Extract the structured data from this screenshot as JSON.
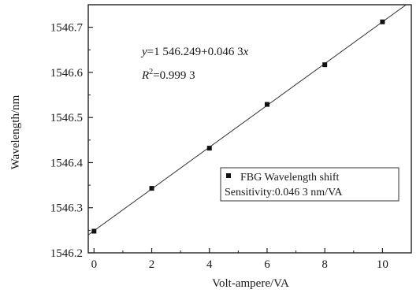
{
  "chart_data": {
    "type": "scatter",
    "title": "",
    "xlabel": "Volt-ampere/VA",
    "ylabel": "Wavelength/nm",
    "xlim": [
      -0.2,
      11
    ],
    "ylim": [
      1546.2,
      1546.75
    ],
    "xticks": [
      0,
      2,
      4,
      6,
      8,
      10
    ],
    "yticks": [
      1546.2,
      1546.3,
      1546.4,
      1546.5,
      1546.6,
      1546.7
    ],
    "xtick_labels": [
      "0",
      "2",
      "4",
      "6",
      "8",
      "10"
    ],
    "ytick_labels": [
      "1546.2",
      "1546.3",
      "1546.4",
      "1546.5",
      "1546.6",
      "1546.7"
    ],
    "series": [
      {
        "name": "FBG Wavelength shift",
        "x": [
          0,
          2,
          4,
          6,
          8,
          10
        ],
        "y": [
          1546.248,
          1546.343,
          1546.432,
          1546.529,
          1546.617,
          1546.712
        ]
      }
    ],
    "fit": {
      "intercept": 1546.249,
      "slope": 0.0463
    },
    "annotations": {
      "y_prefix": "y",
      "equation_rest": "=1 546.249+0.046 3",
      "x_var": "x",
      "r_prefix": "R",
      "r_sup": "2",
      "r_rest": "=0.999 3"
    },
    "legend": {
      "position": "bottom-right",
      "entry": "FBG Wavelength shift",
      "extra": "Sensitivity:0.046 3 nm/VA"
    },
    "grid": false
  }
}
